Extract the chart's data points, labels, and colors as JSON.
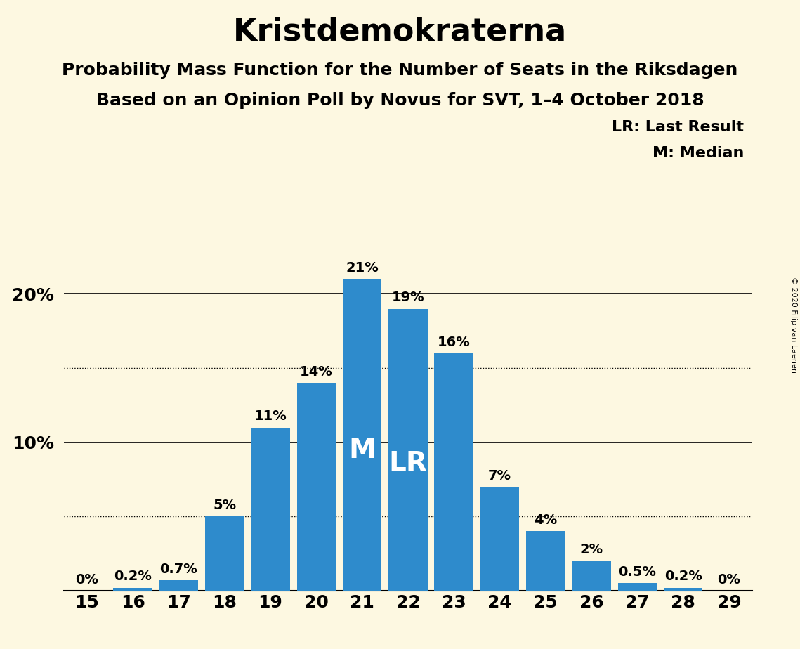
{
  "title": "Kristdemokraterna",
  "subtitle1": "Probability Mass Function for the Number of Seats in the Riksdagen",
  "subtitle2": "Based on an Opinion Poll by Novus for SVT, 1–4 October 2018",
  "copyright": "© 2020 Filip van Laenen",
  "seats": [
    15,
    16,
    17,
    18,
    19,
    20,
    21,
    22,
    23,
    24,
    25,
    26,
    27,
    28,
    29
  ],
  "probabilities": [
    0.0,
    0.2,
    0.7,
    5.0,
    11.0,
    14.0,
    21.0,
    19.0,
    16.0,
    7.0,
    4.0,
    2.0,
    0.5,
    0.2,
    0.0
  ],
  "bar_labels": [
    "0%",
    "0.2%",
    "0.7%",
    "5%",
    "11%",
    "14%",
    "21%",
    "19%",
    "16%",
    "7%",
    "4%",
    "2%",
    "0.5%",
    "0.2%",
    "0%"
  ],
  "bar_color": "#2e8bcc",
  "background_color": "#fdf8e1",
  "median_seat": 21,
  "last_result_seat": 22,
  "legend_text": [
    "LR: Last Result",
    "M: Median"
  ],
  "dotted_lines": [
    5.0,
    15.0
  ],
  "solid_lines": [
    10,
    20
  ],
  "ylim_max": 24.5,
  "title_fontsize": 32,
  "subtitle_fontsize": 18,
  "label_fontsize": 14,
  "tick_fontsize": 18,
  "inside_label_fontsize": 28
}
